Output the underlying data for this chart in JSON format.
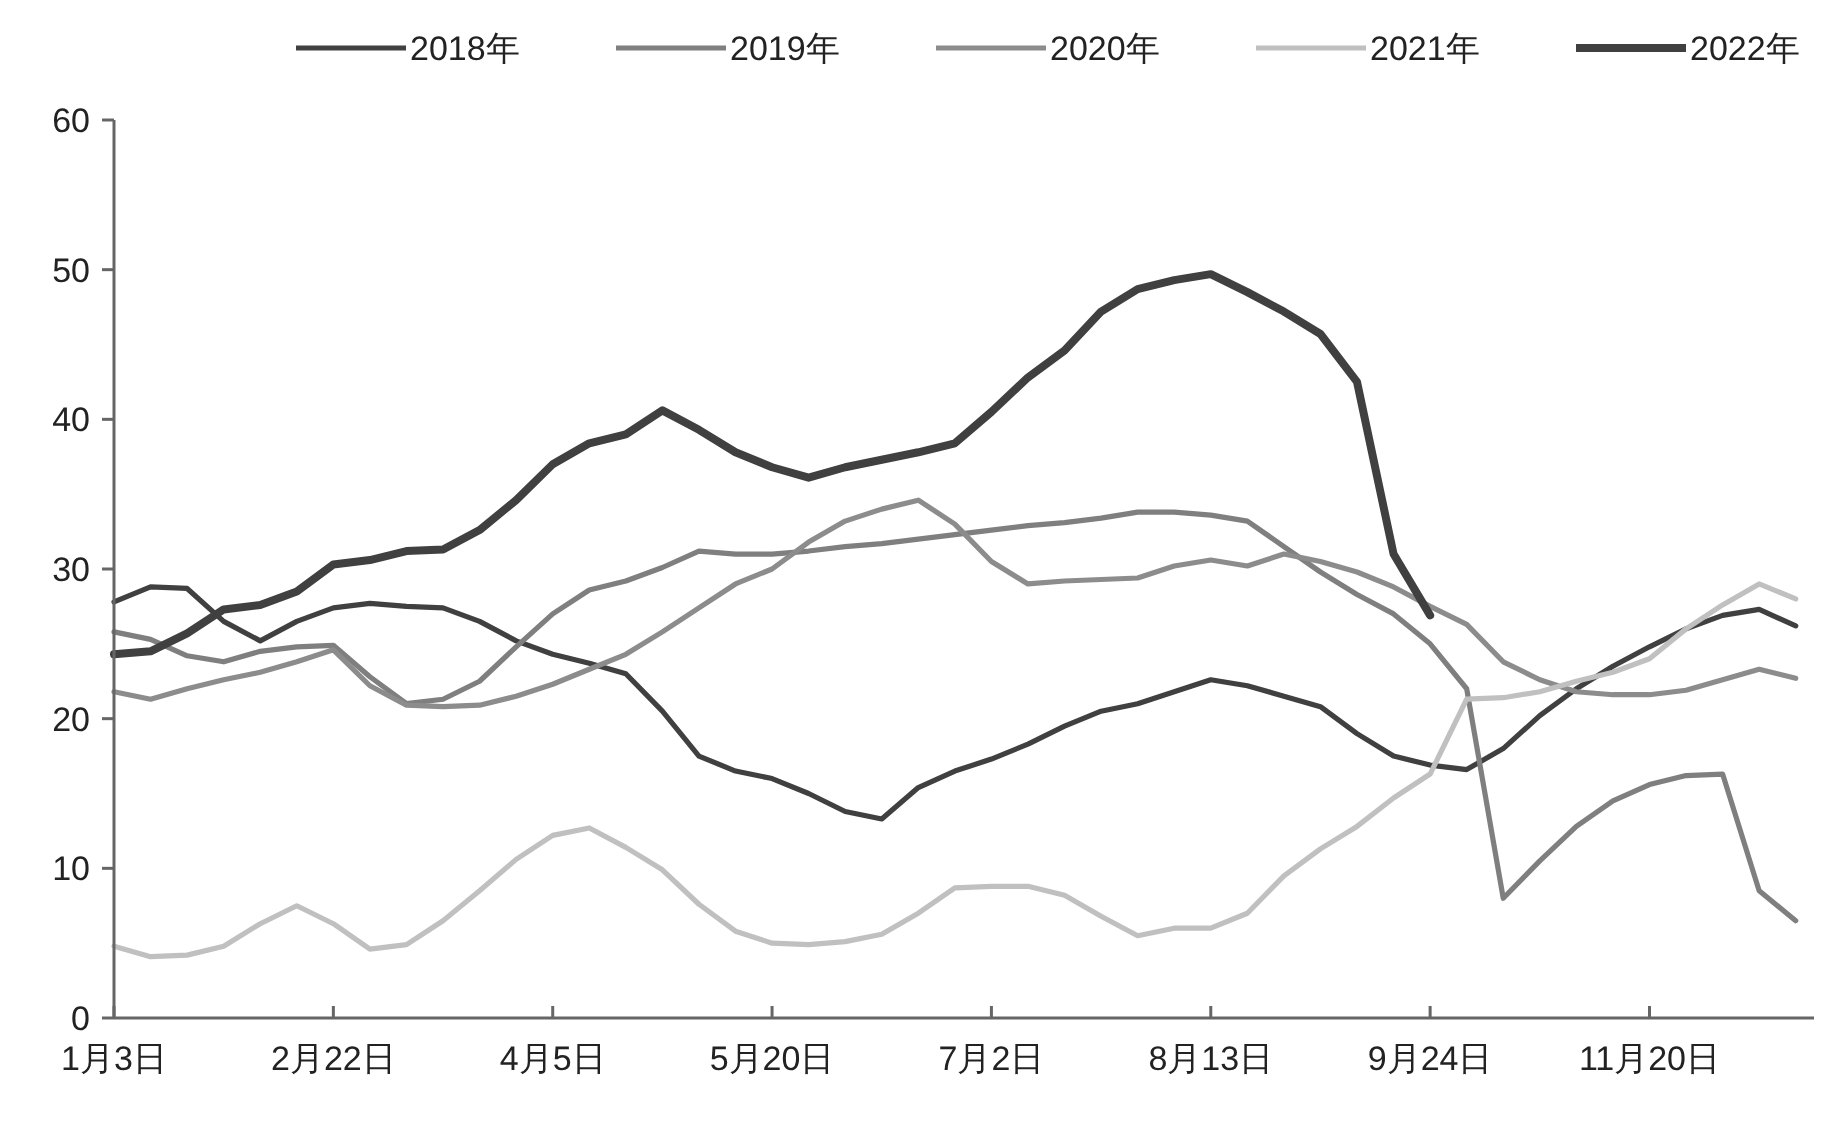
{
  "chart_data": {
    "type": "line",
    "categories": [
      "1月3日",
      null,
      null,
      null,
      null,
      null,
      "2月22日",
      null,
      null,
      null,
      null,
      null,
      "4月5日",
      null,
      null,
      null,
      null,
      null,
      "5月20日",
      null,
      null,
      null,
      null,
      null,
      "7月2日",
      null,
      null,
      null,
      null,
      null,
      "8月13日",
      null,
      null,
      null,
      null,
      null,
      "9月24日",
      null,
      null,
      null,
      null,
      null,
      "11月20日",
      null,
      null,
      null,
      null
    ],
    "ylim": [
      0,
      60
    ],
    "yticks": [
      0,
      10,
      20,
      30,
      40,
      50,
      60
    ],
    "grid": false,
    "legend": "top",
    "marker": "none",
    "line_style": "solid",
    "series": [
      {
        "name": "2018年",
        "color": "#404040",
        "values": [
          27.8,
          28.8,
          28.7,
          26.5,
          25.2,
          26.5,
          27.4,
          27.7,
          27.5,
          27.4,
          26.5,
          25.2,
          24.3,
          23.7,
          23.0,
          20.5,
          17.5,
          16.5,
          16.0,
          15.0,
          13.8,
          13.3,
          15.4,
          16.5,
          17.3,
          18.3,
          19.5,
          20.5,
          21.0,
          21.8,
          22.6,
          22.2,
          21.5,
          20.8,
          19.0,
          17.5,
          16.9,
          16.6,
          18.0,
          20.2,
          22.0,
          23.5,
          24.8,
          26.0,
          26.9,
          27.3,
          26.2
        ]
      },
      {
        "name": "2019年",
        "color": "#7f7f7f",
        "values": [
          25.8,
          25.3,
          24.2,
          23.8,
          24.5,
          24.8,
          24.9,
          22.8,
          21.0,
          21.3,
          22.5,
          24.8,
          27.0,
          28.6,
          29.2,
          30.1,
          31.2,
          31.0,
          31.0,
          31.2,
          31.5,
          31.7,
          32.0,
          32.3,
          32.6,
          32.9,
          33.1,
          33.4,
          33.8,
          33.8,
          33.6,
          33.2,
          31.5,
          29.8,
          28.3,
          27.0,
          25.0,
          22.0,
          8.0,
          10.5,
          12.8,
          14.5,
          15.6,
          16.2,
          16.3,
          8.5,
          6.5
        ]
      },
      {
        "name": "2020年",
        "color": "#8c8c8c",
        "values": [
          21.8,
          21.3,
          22.0,
          22.6,
          23.1,
          23.8,
          24.6,
          22.2,
          20.9,
          20.8,
          20.9,
          21.5,
          22.3,
          23.3,
          24.3,
          25.8,
          27.4,
          29.0,
          30.0,
          31.8,
          33.2,
          34.0,
          34.6,
          33.0,
          30.5,
          29.0,
          29.2,
          29.3,
          29.4,
          30.2,
          30.6,
          30.2,
          31.0,
          30.5,
          29.8,
          28.8,
          27.5,
          26.3,
          23.8,
          22.6,
          21.8,
          21.6,
          21.6,
          21.9,
          22.6,
          23.3,
          22.7
        ]
      },
      {
        "name": "2021年",
        "color": "#c0c0c0",
        "values": [
          4.8,
          4.1,
          4.2,
          4.8,
          6.3,
          7.5,
          6.3,
          4.6,
          4.9,
          6.5,
          8.5,
          10.6,
          12.2,
          12.7,
          11.4,
          9.9,
          7.6,
          5.8,
          5.0,
          4.9,
          5.1,
          5.6,
          7.0,
          8.7,
          8.8,
          8.8,
          8.2,
          6.8,
          5.5,
          6.0,
          6.0,
          7.0,
          9.5,
          11.3,
          12.8,
          14.7,
          16.3,
          21.3,
          21.4,
          21.8,
          22.5,
          23.1,
          24.0,
          26.0,
          27.6,
          29.0,
          28.0
        ]
      },
      {
        "name": "2022年",
        "color": "#404040",
        "values": [
          24.3,
          24.5,
          25.7,
          27.3,
          27.6,
          28.5,
          30.3,
          30.6,
          31.2,
          31.3,
          32.6,
          34.6,
          37.0,
          38.4,
          39.0,
          40.6,
          39.3,
          37.8,
          36.8,
          36.1,
          36.8,
          37.3,
          37.8,
          38.4,
          40.5,
          42.8,
          44.6,
          47.2,
          48.7,
          49.3,
          49.7,
          48.5,
          47.2,
          45.7,
          42.5,
          31.0,
          26.9,
          null,
          null,
          null,
          null,
          null,
          null,
          null,
          null,
          null,
          null
        ]
      }
    ]
  }
}
